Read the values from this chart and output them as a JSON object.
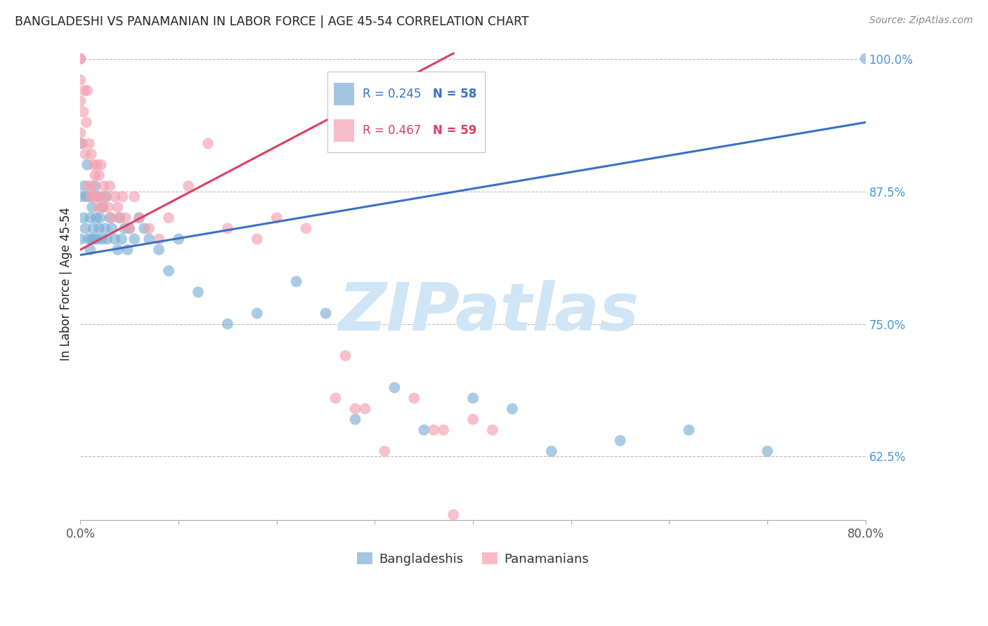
{
  "title": "BANGLADESHI VS PANAMANIAN IN LABOR FORCE | AGE 45-54 CORRELATION CHART",
  "source": "Source: ZipAtlas.com",
  "ylabel": "In Labor Force | Age 45-54",
  "xlim": [
    0.0,
    0.8
  ],
  "ylim": [
    0.565,
    1.01
  ],
  "xtick_positions": [
    0.0,
    0.1,
    0.2,
    0.3,
    0.4,
    0.5,
    0.6,
    0.7,
    0.8
  ],
  "xtick_show_labels": [
    true,
    false,
    false,
    false,
    false,
    false,
    false,
    false,
    true
  ],
  "xticklabels": [
    "0.0%",
    "",
    "",
    "",
    "",
    "",
    "",
    "",
    "80.0%"
  ],
  "yticks": [
    0.625,
    0.75,
    0.875,
    1.0
  ],
  "yticklabels": [
    "62.5%",
    "75.0%",
    "87.5%",
    "100.0%"
  ],
  "legend_blue_r": "R = 0.245",
  "legend_blue_n": "N = 58",
  "legend_pink_r": "R = 0.467",
  "legend_pink_n": "N = 59",
  "blue_color": "#7BAFD4",
  "pink_color": "#F4A0B0",
  "blue_line_color": "#3A6FC4",
  "pink_line_color": "#D94060",
  "watermark": "ZIPatlas",
  "watermark_color": "#D0E5F5",
  "background_color": "#FFFFFF",
  "title_color": "#222222",
  "axis_label_color": "#222222",
  "tick_color_y": "#4499DD",
  "grid_color": "#BBBBBB",
  "blue_scatter_x": [
    0.0,
    0.0,
    0.0,
    0.003,
    0.004,
    0.005,
    0.006,
    0.007,
    0.008,
    0.009,
    0.01,
    0.01,
    0.011,
    0.012,
    0.013,
    0.014,
    0.015,
    0.016,
    0.017,
    0.018,
    0.019,
    0.02,
    0.022,
    0.023,
    0.025,
    0.026,
    0.027,
    0.03,
    0.032,
    0.035,
    0.038,
    0.04,
    0.042,
    0.045,
    0.048,
    0.05,
    0.055,
    0.06,
    0.065,
    0.07,
    0.08,
    0.09,
    0.1,
    0.12,
    0.15,
    0.18,
    0.22,
    0.25,
    0.28,
    0.32,
    0.35,
    0.4,
    0.44,
    0.48,
    0.55,
    0.62,
    0.7,
    0.8
  ],
  "blue_scatter_y": [
    0.83,
    0.87,
    0.92,
    0.85,
    0.88,
    0.84,
    0.87,
    0.9,
    0.83,
    0.87,
    0.82,
    0.85,
    0.83,
    0.86,
    0.84,
    0.83,
    0.88,
    0.85,
    0.83,
    0.87,
    0.84,
    0.85,
    0.83,
    0.86,
    0.84,
    0.87,
    0.83,
    0.85,
    0.84,
    0.83,
    0.82,
    0.85,
    0.83,
    0.84,
    0.82,
    0.84,
    0.83,
    0.85,
    0.84,
    0.83,
    0.82,
    0.8,
    0.83,
    0.78,
    0.75,
    0.76,
    0.79,
    0.76,
    0.66,
    0.69,
    0.65,
    0.68,
    0.67,
    0.63,
    0.64,
    0.65,
    0.63,
    1.0
  ],
  "pink_scatter_x": [
    0.0,
    0.0,
    0.0,
    0.0,
    0.0,
    0.002,
    0.003,
    0.004,
    0.005,
    0.006,
    0.007,
    0.008,
    0.009,
    0.01,
    0.011,
    0.012,
    0.013,
    0.014,
    0.015,
    0.016,
    0.017,
    0.018,
    0.019,
    0.02,
    0.021,
    0.022,
    0.024,
    0.026,
    0.028,
    0.03,
    0.032,
    0.035,
    0.038,
    0.04,
    0.043,
    0.046,
    0.05,
    0.055,
    0.06,
    0.07,
    0.08,
    0.09,
    0.11,
    0.13,
    0.15,
    0.18,
    0.2,
    0.23,
    0.26,
    0.28,
    0.31,
    0.34,
    0.37,
    0.38,
    0.4,
    0.42,
    0.27,
    0.29,
    0.36
  ],
  "pink_scatter_y": [
    0.93,
    0.96,
    0.98,
    1.0,
    1.0,
    0.92,
    0.95,
    0.97,
    0.91,
    0.94,
    0.97,
    0.88,
    0.92,
    0.87,
    0.91,
    0.88,
    0.9,
    0.87,
    0.89,
    0.87,
    0.9,
    0.86,
    0.89,
    0.87,
    0.9,
    0.86,
    0.88,
    0.87,
    0.86,
    0.88,
    0.85,
    0.87,
    0.86,
    0.85,
    0.87,
    0.85,
    0.84,
    0.87,
    0.85,
    0.84,
    0.83,
    0.85,
    0.88,
    0.92,
    0.84,
    0.83,
    0.85,
    0.84,
    0.68,
    0.67,
    0.63,
    0.68,
    0.65,
    0.57,
    0.66,
    0.65,
    0.72,
    0.67,
    0.65
  ]
}
